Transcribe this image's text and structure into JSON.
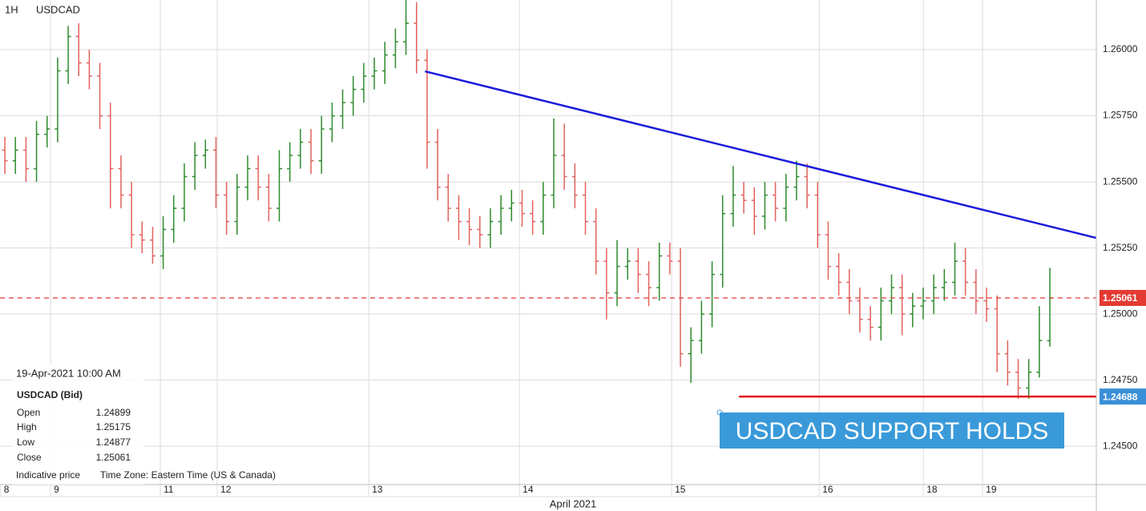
{
  "header": {
    "interval": "1H",
    "symbol": "USDCAD"
  },
  "info_panel": {
    "datetime": "19-Apr-2021 10:00 AM",
    "title": "USDCAD (Bid)",
    "rows": [
      [
        "Open",
        1.24899
      ],
      [
        "High",
        1.25175
      ],
      [
        "Low",
        1.24877
      ],
      [
        "Close",
        1.25061
      ]
    ],
    "note": "Indicative price",
    "timezone": "Time Zone: Eastern Time (US & Canada)"
  },
  "chart_data": {
    "type": "ohlc",
    "x_axis_label": "April 2021",
    "up_color": "#2e8b2e",
    "down_color": "#e2625c",
    "grid": true,
    "xlim": [
      -0.46,
      103.4
    ],
    "xticks": [
      {
        "value": -0.4,
        "label": "8"
      },
      {
        "value": 4.33,
        "label": "9"
      },
      {
        "value": 14.73,
        "label": "11"
      },
      {
        "value": 20.12,
        "label": "12"
      },
      {
        "value": 34.47,
        "label": "13"
      },
      {
        "value": 48.75,
        "label": "14"
      },
      {
        "value": 63.17,
        "label": "15"
      },
      {
        "value": 77.15,
        "label": "16"
      },
      {
        "value": 87.02,
        "label": "18"
      },
      {
        "value": 92.63,
        "label": "19"
      }
    ],
    "ylim": [
      1.24355,
      1.26188
    ],
    "yticks": [
      {
        "value": 1.245,
        "label": "1.24500"
      },
      {
        "value": 1.2475,
        "label": "1.24750"
      },
      {
        "value": 1.25,
        "label": "1.25000"
      },
      {
        "value": 1.2525,
        "label": "1.25250"
      },
      {
        "value": 1.255,
        "label": "1.25500"
      },
      {
        "value": 1.2575,
        "label": "1.25750"
      },
      {
        "value": 1.26,
        "label": "1.26000"
      }
    ],
    "open": [
      1.2562,
      1.2558,
      1.2562,
      1.2555,
      1.2568,
      1.257,
      1.2592,
      1.2605,
      1.2595,
      1.259,
      1.2575,
      1.2555,
      1.2545,
      1.253,
      1.2528,
      1.2522,
      1.2532,
      1.254,
      1.2552,
      1.256,
      1.2562,
      1.2545,
      1.2535,
      1.2548,
      1.2555,
      1.2548,
      1.254,
      1.2555,
      1.256,
      1.2565,
      1.2558,
      1.257,
      1.2575,
      1.258,
      1.2585,
      1.259,
      1.2592,
      1.2598,
      1.2603,
      1.261,
      1.2596,
      1.2565,
      1.2548,
      1.254,
      1.2535,
      1.2532,
      1.253,
      1.2535,
      1.254,
      1.2542,
      1.2538,
      1.2535,
      1.2545,
      1.256,
      1.2552,
      1.2545,
      1.2535,
      1.252,
      1.2508,
      1.2518,
      1.252,
      1.2515,
      1.251,
      1.2522,
      1.252,
      1.2485,
      1.249,
      1.25,
      1.2515,
      1.2538,
      1.2545,
      1.2543,
      1.2537,
      1.2545,
      1.254,
      1.2548,
      1.2552,
      1.2545,
      1.253,
      1.2518,
      1.2512,
      1.2505,
      1.2498,
      1.2495,
      1.2505,
      1.251,
      1.25,
      1.2503,
      1.2505,
      1.251,
      1.2512,
      1.252,
      1.2512,
      1.2505,
      1.2502,
      1.2485,
      1.2478,
      1.2472,
      1.2478,
      1.24899
    ],
    "high": [
      1.2567,
      1.2567,
      1.2567,
      1.2573,
      1.2575,
      1.2597,
      1.2609,
      1.261,
      1.26,
      1.2595,
      1.258,
      1.256,
      1.255,
      1.2535,
      1.2533,
      1.2537,
      1.2545,
      1.2557,
      1.2565,
      1.2566,
      1.2567,
      1.255,
      1.2553,
      1.256,
      1.256,
      1.2553,
      1.2562,
      1.2565,
      1.257,
      1.257,
      1.2575,
      1.258,
      1.2585,
      1.259,
      1.2595,
      1.2597,
      1.2603,
      1.2608,
      1.2619,
      1.2618,
      1.26,
      1.257,
      1.2553,
      1.2545,
      1.254,
      1.2537,
      1.254,
      1.2545,
      1.2547,
      1.2547,
      1.2543,
      1.255,
      1.2574,
      1.2572,
      1.2557,
      1.255,
      1.254,
      1.2525,
      1.2528,
      1.2525,
      1.2525,
      1.252,
      1.2527,
      1.2527,
      1.2525,
      1.2495,
      1.2505,
      1.252,
      1.2545,
      1.2556,
      1.255,
      1.2548,
      1.255,
      1.255,
      1.2553,
      1.2558,
      1.2557,
      1.255,
      1.2535,
      1.2523,
      1.2517,
      1.251,
      1.2503,
      1.251,
      1.2515,
      1.2515,
      1.2508,
      1.251,
      1.2515,
      1.2517,
      1.2527,
      1.2525,
      1.2517,
      1.251,
      1.2507,
      1.249,
      1.2483,
      1.2483,
      1.2503,
      1.25175
    ],
    "low": [
      1.2553,
      1.2553,
      1.255,
      1.255,
      1.2563,
      1.2565,
      1.2587,
      1.259,
      1.2585,
      1.257,
      1.254,
      1.254,
      1.2525,
      1.2523,
      1.2519,
      1.2517,
      1.2527,
      1.2535,
      1.2547,
      1.2555,
      1.254,
      1.253,
      1.253,
      1.2543,
      1.2543,
      1.2535,
      1.2535,
      1.255,
      1.2555,
      1.2553,
      1.2553,
      1.2565,
      1.257,
      1.2575,
      1.258,
      1.2585,
      1.2587,
      1.2593,
      1.2598,
      1.2591,
      1.2555,
      1.2543,
      1.2535,
      1.2528,
      1.2526,
      1.2525,
      1.2525,
      1.253,
      1.2535,
      1.2533,
      1.253,
      1.253,
      1.254,
      1.2547,
      1.254,
      1.253,
      1.2515,
      1.2498,
      1.2503,
      1.2513,
      1.2508,
      1.2503,
      1.2505,
      1.2515,
      1.248,
      1.2474,
      1.2485,
      1.2495,
      1.251,
      1.2533,
      1.2538,
      1.253,
      1.2532,
      1.2535,
      1.2535,
      1.2543,
      1.254,
      1.2525,
      1.2513,
      1.2507,
      1.25,
      1.2493,
      1.249,
      1.249,
      1.25,
      1.2492,
      1.2495,
      1.2498,
      1.25,
      1.2505,
      1.2507,
      1.2507,
      1.25,
      1.2497,
      1.2478,
      1.2473,
      1.2468,
      1.2468,
      1.2476,
      1.24877
    ],
    "close": [
      1.2558,
      1.2562,
      1.2555,
      1.2568,
      1.257,
      1.2592,
      1.2605,
      1.2595,
      1.259,
      1.2575,
      1.2555,
      1.2545,
      1.253,
      1.2528,
      1.2522,
      1.2532,
      1.254,
      1.2552,
      1.256,
      1.2562,
      1.2545,
      1.2535,
      1.2548,
      1.2555,
      1.2548,
      1.254,
      1.2555,
      1.256,
      1.2565,
      1.2558,
      1.257,
      1.2575,
      1.258,
      1.2585,
      1.259,
      1.2592,
      1.2598,
      1.2603,
      1.261,
      1.2596,
      1.2565,
      1.2548,
      1.254,
      1.2535,
      1.2532,
      1.253,
      1.2535,
      1.254,
      1.2542,
      1.2538,
      1.2535,
      1.2545,
      1.256,
      1.2552,
      1.2545,
      1.2535,
      1.252,
      1.2508,
      1.2518,
      1.252,
      1.2515,
      1.251,
      1.2522,
      1.252,
      1.2485,
      1.249,
      1.25,
      1.2515,
      1.2538,
      1.2545,
      1.2543,
      1.2537,
      1.2545,
      1.254,
      1.2548,
      1.2552,
      1.2545,
      1.253,
      1.2518,
      1.2512,
      1.2505,
      1.2498,
      1.2495,
      1.2505,
      1.251,
      1.25,
      1.2503,
      1.2505,
      1.251,
      1.2512,
      1.252,
      1.2512,
      1.2505,
      1.2502,
      1.2485,
      1.2478,
      1.2472,
      1.2478,
      1.249,
      1.25061
    ],
    "trendline": {
      "x": [
        39.8,
        103.4
      ],
      "y": [
        1.259182,
        1.252879
      ],
      "color": "#1a1adb"
    },
    "support_line": {
      "x": [
        69.55,
        103.4
      ],
      "value": 1.24688,
      "color": "#e01414"
    },
    "price_flags": [
      {
        "value": 1.25061,
        "color": "#e33b33"
      },
      {
        "value": 1.24688,
        "color": "#3a8fd8"
      }
    ],
    "annotation": {
      "text": "USDCAD SUPPORT HOLDS",
      "color": "#3a9ad9"
    }
  }
}
